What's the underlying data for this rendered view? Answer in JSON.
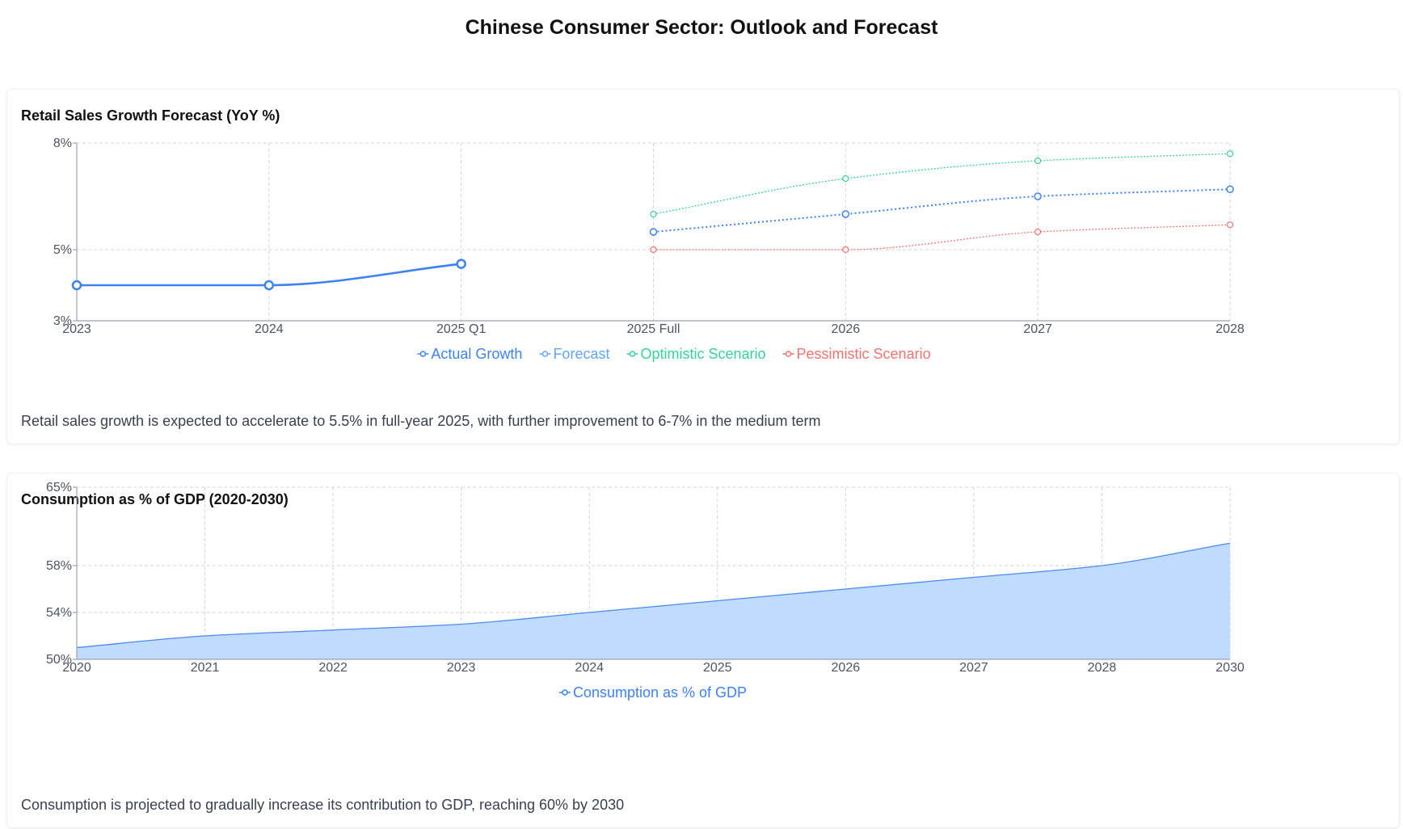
{
  "page": {
    "title": "Chinese Consumer Sector: Outlook and Forecast"
  },
  "colors": {
    "actual": "#3b82f6",
    "forecast": "#3b82f6",
    "forecast_legend": "#60a5fa",
    "optimistic": "#34d399",
    "pessimistic": "#f87171",
    "area_fill": "#bfdbfe",
    "area_line": "#4a8cf0"
  },
  "chart_data": [
    {
      "type": "line",
      "title": "Retail Sales Growth Forecast (YoY %)",
      "categories": [
        "2023",
        "2024",
        "2025 Q1",
        "2025 Full",
        "2026",
        "2027",
        "2028"
      ],
      "y_ticks": [
        "8%",
        "5%",
        "3%"
      ],
      "ylim": [
        3,
        8
      ],
      "grid": true,
      "legend_position": "bottom",
      "series": [
        {
          "name": "Actual Growth",
          "values": [
            4,
            4,
            4.6,
            null,
            null,
            null,
            null
          ],
          "style": "solid"
        },
        {
          "name": "Forecast",
          "values": [
            null,
            null,
            null,
            5.5,
            6,
            6.5,
            6.7
          ],
          "style": "dotted"
        },
        {
          "name": "Optimistic Scenario",
          "values": [
            null,
            null,
            null,
            6,
            7,
            7.5,
            7.7
          ],
          "style": "dotted"
        },
        {
          "name": "Pessimistic Scenario",
          "values": [
            null,
            null,
            null,
            5,
            5,
            5.5,
            5.7
          ],
          "style": "dotted"
        }
      ],
      "note": "Retail sales growth is expected to accelerate to 5.5% in full-year 2025, with further improvement to 6-7% in the medium term"
    },
    {
      "type": "area",
      "title": "Consumption as % of GDP (2020-2030)",
      "categories": [
        "2020",
        "2021",
        "2022",
        "2023",
        "2024",
        "2025",
        "2026",
        "2027",
        "2028",
        "2030"
      ],
      "y_ticks": [
        "65%",
        "58%",
        "54%",
        "50%"
      ],
      "ylim": [
        50,
        65
      ],
      "grid": true,
      "legend_position": "bottom",
      "series": [
        {
          "name": "Consumption as % of GDP",
          "values": [
            51,
            52,
            52.5,
            53,
            54,
            55,
            56,
            57,
            58,
            60
          ]
        }
      ],
      "note": "Consumption is projected to gradually increase its contribution to GDP, reaching 60% by 2030"
    }
  ]
}
